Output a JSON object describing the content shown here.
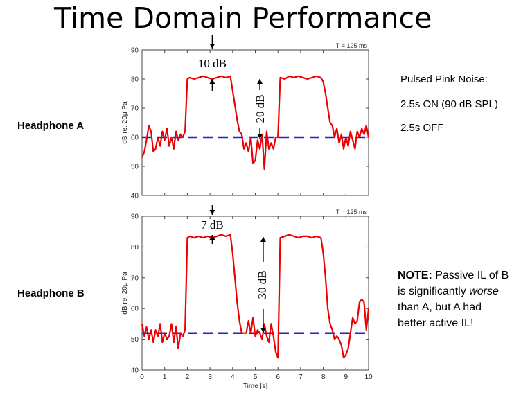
{
  "title": "Time Domain Performance",
  "labels": {
    "headphone_a": "Headphone A",
    "headphone_b": "Headphone B"
  },
  "legend_text": {
    "line1": "Pulsed Pink Noise:",
    "line2": "2.5s ON (90 dB SPL)",
    "line3": "2.5s OFF"
  },
  "note": {
    "bold": "NOTE:",
    "line1_rest": " Passive IL of B",
    "line2_pre": "is significantly ",
    "line2_em": "worse",
    "line3": "than A, but A had",
    "line4": "better active IL!"
  },
  "colors": {
    "signal": "#ee0000",
    "baseline": "#2222cc"
  },
  "chart_data": [
    {
      "type": "line",
      "name": "Headphone A",
      "ylabel": "dB re. 20μ Pa",
      "xlim": [
        0,
        10
      ],
      "ylim": [
        40,
        90
      ],
      "yticks": [
        40,
        50,
        60,
        70,
        80,
        90
      ],
      "time_constant": "T = 125 ms",
      "baseline": 60,
      "annotations": {
        "top": "10 dB",
        "mid": "20 dB"
      },
      "x": [
        0.0,
        0.1,
        0.2,
        0.3,
        0.4,
        0.5,
        0.6,
        0.7,
        0.8,
        0.9,
        1.0,
        1.1,
        1.2,
        1.3,
        1.4,
        1.5,
        1.6,
        1.7,
        1.8,
        1.9,
        2.0,
        2.1,
        2.3,
        2.5,
        2.7,
        2.9,
        3.1,
        3.3,
        3.5,
        3.7,
        3.9,
        4.0,
        4.1,
        4.2,
        4.3,
        4.4,
        4.5,
        4.6,
        4.7,
        4.8,
        4.9,
        5.0,
        5.1,
        5.2,
        5.3,
        5.4,
        5.5,
        5.6,
        5.7,
        5.8,
        5.9,
        6.0,
        6.1,
        6.3,
        6.5,
        6.7,
        6.9,
        7.1,
        7.3,
        7.5,
        7.7,
        7.9,
        8.0,
        8.1,
        8.2,
        8.3,
        8.4,
        8.5,
        8.6,
        8.7,
        8.8,
        8.9,
        9.0,
        9.1,
        9.2,
        9.3,
        9.4,
        9.5,
        9.6,
        9.7,
        9.8,
        9.9,
        10.0
      ],
      "y": [
        53,
        55,
        59,
        64,
        62,
        55,
        56,
        60,
        57,
        62,
        59,
        63,
        57,
        60,
        56,
        62,
        59,
        61,
        60,
        62,
        80,
        80.5,
        80,
        80.5,
        81,
        80.5,
        80,
        80.5,
        81,
        80.5,
        81,
        76,
        71,
        66,
        62,
        61,
        56,
        58,
        55,
        60,
        51,
        52,
        59,
        56,
        61,
        49,
        62,
        56,
        58,
        56,
        60,
        60,
        80.5,
        80,
        81,
        80.5,
        81,
        80.5,
        80,
        80.5,
        81,
        80.5,
        79,
        75,
        70,
        65,
        64,
        60,
        63,
        58,
        61,
        56,
        60,
        57,
        62,
        59,
        56,
        62,
        60,
        63,
        61,
        64,
        60
      ]
    },
    {
      "type": "line",
      "name": "Headphone B",
      "ylabel": "dB re. 20μ Pa",
      "xlabel": "Time [s]",
      "xlim": [
        0,
        10
      ],
      "ylim": [
        40,
        90
      ],
      "xticks": [
        0,
        1,
        2,
        3,
        4,
        5,
        6,
        7,
        8,
        9,
        10
      ],
      "yticks": [
        40,
        50,
        60,
        70,
        80,
        90
      ],
      "time_constant": "T = 125 ms",
      "baseline": 52,
      "annotations": {
        "top": "7 dB",
        "mid": "30 dB"
      },
      "x": [
        0.0,
        0.1,
        0.2,
        0.3,
        0.4,
        0.5,
        0.6,
        0.7,
        0.8,
        0.9,
        1.0,
        1.1,
        1.2,
        1.3,
        1.4,
        1.5,
        1.6,
        1.7,
        1.8,
        1.9,
        2.0,
        2.1,
        2.3,
        2.5,
        2.7,
        2.9,
        3.1,
        3.3,
        3.5,
        3.7,
        3.9,
        4.0,
        4.1,
        4.2,
        4.3,
        4.4,
        4.5,
        4.6,
        4.7,
        4.8,
        4.9,
        5.0,
        5.1,
        5.2,
        5.3,
        5.4,
        5.5,
        5.6,
        5.7,
        5.8,
        5.9,
        6.0,
        6.1,
        6.3,
        6.5,
        6.7,
        6.9,
        7.1,
        7.3,
        7.5,
        7.7,
        7.9,
        8.0,
        8.1,
        8.2,
        8.3,
        8.4,
        8.5,
        8.6,
        8.7,
        8.8,
        8.9,
        9.0,
        9.1,
        9.2,
        9.3,
        9.4,
        9.5,
        9.6,
        9.7,
        9.8,
        9.9,
        10.0
      ],
      "y": [
        55,
        51,
        54,
        50,
        53,
        49,
        53,
        51,
        55,
        49,
        52,
        50,
        51,
        55,
        49,
        54,
        47,
        52,
        51,
        53,
        83,
        83.5,
        83,
        83.5,
        83,
        83.5,
        83,
        83.5,
        84,
        83.5,
        84,
        78,
        70,
        62,
        56,
        52,
        52,
        52,
        56,
        52,
        57,
        51,
        53,
        52,
        50,
        55,
        51,
        49,
        55,
        51,
        46,
        44,
        83,
        83.5,
        84,
        83.5,
        83,
        83.5,
        83.5,
        83,
        83.5,
        83,
        78,
        70,
        60,
        55,
        53,
        50,
        51,
        50,
        48,
        44,
        45,
        47,
        52,
        57,
        55,
        56,
        62,
        63,
        62,
        53,
        60
      ]
    }
  ]
}
